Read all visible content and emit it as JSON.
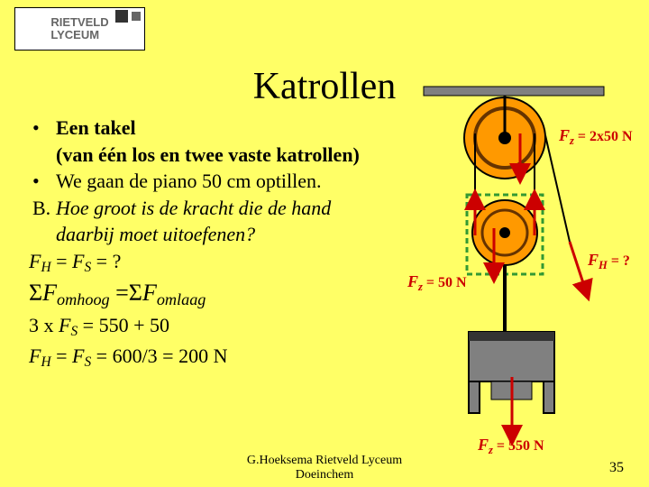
{
  "logo": {
    "line1": "RIETVELD",
    "line2": "LYCEUM"
  },
  "title": "Katrollen",
  "bullets": [
    {
      "type": "bullet",
      "bold": true,
      "text": "Een takel"
    },
    {
      "type": "cont",
      "bold": true,
      "text": "(van één los en twee vaste katrollen)"
    },
    {
      "type": "bullet",
      "bold": false,
      "text": "We gaan de piano 50 cm optillen."
    }
  ],
  "question": {
    "label": "B.",
    "line1": "Hoe groot is de kracht die de hand",
    "line2": "daarbij moet uitoefenen?"
  },
  "eq1_html": "<span class='italic'>F</span><span class='italic sub'>H</span> = <span class='italic'>F</span><span class='italic sub'>S</span> = ?",
  "eq2_html": "Σ<span class='italic'>F</span><span class='italic sub'>omhoog</span> =Σ<span class='italic'>F</span><span class='italic sub'>omlaag</span>",
  "eq3_html": "3 x <span class='italic'>F</span><span class='italic sub'>S</span> = 550 + 50",
  "eq4_html": "<span class='italic'>F</span><span class='italic sub'>H</span> = <span class='italic'>F</span><span class='italic sub'>S</span> = 600/3 = 200 N",
  "footer": {
    "line1": "G.Hoeksema Rietveld Lyceum",
    "line2": "Doeinchem"
  },
  "slidenum": "35",
  "diagram": {
    "colors": {
      "bar": "#808080",
      "bar_stroke": "#000000",
      "pulley_outer": "#ff9900",
      "pulley_rim": "#000000",
      "pulley_center_dark": "#663300",
      "rope": "#000000",
      "frame": "#339933",
      "piano_body": "#808080",
      "piano_dark": "#333333",
      "force": "#cc0000"
    },
    "labels": {
      "fz_top": {
        "prefix": "F",
        "sub": "z",
        "rest": " = 2x50 N"
      },
      "fh": {
        "prefix": "F",
        "sub": "H",
        "rest": " = ?"
      },
      "fz_mid": {
        "prefix": "F",
        "sub": "z",
        "rest": " = 50 N"
      },
      "fz_bot": {
        "prefix": "F",
        "sub": "z",
        "rest": " = 550 N"
      }
    }
  }
}
